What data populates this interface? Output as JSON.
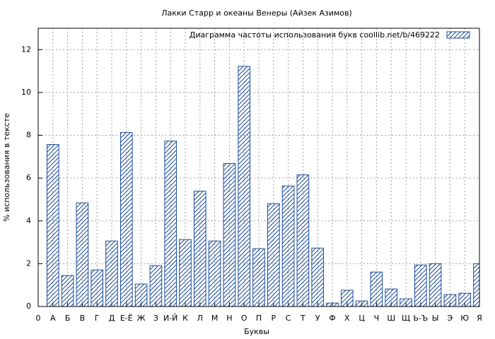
{
  "chart_data": {
    "type": "bar",
    "title": "Лакки Старр и океаны Венеры (Айзек Азимов)",
    "xlabel": "Буквы",
    "ylabel": "% использования в тексте",
    "x": [
      1,
      2,
      3,
      4,
      5,
      6,
      7,
      8,
      9,
      10,
      11,
      12,
      13,
      14,
      15,
      16,
      17,
      18,
      19,
      20,
      21,
      22,
      23,
      24,
      25,
      26,
      27,
      28,
      29,
      30
    ],
    "series": [
      {
        "name": "Диаграмма частоты использования букв  coollib.net/b/469222",
        "color": "#1f4e9c",
        "values": [
          7.57,
          1.45,
          4.84,
          1.71,
          3.06,
          8.13,
          1.05,
          1.91,
          7.73,
          3.13,
          5.39,
          3.06,
          6.68,
          11.22,
          2.7,
          4.8,
          5.63,
          6.15,
          2.73,
          0.16,
          0.76,
          0.26,
          1.61,
          0.82,
          0.36,
          1.94,
          2.0,
          0.56,
          0.62,
          2.0
        ]
      }
    ],
    "xlim": [
      0,
      30
    ],
    "xticks": [
      0,
      {
        "value": 1,
        "label": "А"
      },
      {
        "value": 2,
        "label": "Б"
      },
      {
        "value": 3,
        "label": "В"
      },
      {
        "value": 4,
        "label": "Г"
      },
      {
        "value": 5,
        "label": "Д"
      },
      {
        "value": 6,
        "label": "Е-Ё"
      },
      {
        "value": 7,
        "label": "Ж"
      },
      {
        "value": 8,
        "label": "З"
      },
      {
        "value": 9,
        "label": "И-Й"
      },
      {
        "value": 10,
        "label": "К"
      },
      {
        "value": 11,
        "label": "Л"
      },
      {
        "value": 12,
        "label": "М"
      },
      {
        "value": 13,
        "label": "Н"
      },
      {
        "value": 14,
        "label": "О"
      },
      {
        "value": 15,
        "label": "П"
      },
      {
        "value": 16,
        "label": "Р"
      },
      {
        "value": 17,
        "label": "С"
      },
      {
        "value": 18,
        "label": "Т"
      },
      {
        "value": 19,
        "label": "У"
      },
      {
        "value": 20,
        "label": "Ф"
      },
      {
        "value": 21,
        "label": "Х"
      },
      {
        "value": 22,
        "label": "Ц"
      },
      {
        "value": 23,
        "label": "Ч"
      },
      {
        "value": 24,
        "label": "Ш"
      },
      {
        "value": 25,
        "label": "Щ"
      },
      {
        "value": 26,
        "label": "Ь-Ъ"
      },
      {
        "value": 27,
        "label": "Ы"
      },
      {
        "value": 28,
        "label": "Э"
      },
      {
        "value": 29,
        "label": "Ю"
      },
      {
        "value": 30,
        "label": "Я"
      }
    ],
    "ylim": [
      0,
      13
    ],
    "yticks": [
      0,
      2,
      4,
      6,
      8,
      10,
      12
    ],
    "grid": true,
    "legend": "top-right"
  }
}
